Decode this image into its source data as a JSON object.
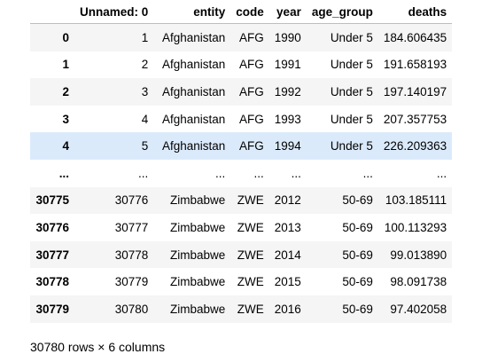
{
  "table": {
    "columns": [
      "",
      "Unnamed: 0",
      "entity",
      "code",
      "year",
      "age_group",
      "deaths"
    ],
    "rows": [
      {
        "index": "0",
        "cells": [
          "1",
          "Afghanistan",
          "AFG",
          "1990",
          "Under 5",
          "184.606435"
        ]
      },
      {
        "index": "1",
        "cells": [
          "2",
          "Afghanistan",
          "AFG",
          "1991",
          "Under 5",
          "191.658193"
        ]
      },
      {
        "index": "2",
        "cells": [
          "3",
          "Afghanistan",
          "AFG",
          "1992",
          "Under 5",
          "197.140197"
        ]
      },
      {
        "index": "3",
        "cells": [
          "4",
          "Afghanistan",
          "AFG",
          "1993",
          "Under 5",
          "207.357753"
        ]
      },
      {
        "index": "4",
        "cells": [
          "5",
          "Afghanistan",
          "AFG",
          "1994",
          "Under 5",
          "226.209363"
        ]
      },
      {
        "index": "...",
        "cells": [
          "...",
          "...",
          "...",
          "...",
          "...",
          "..."
        ]
      },
      {
        "index": "30775",
        "cells": [
          "30776",
          "Zimbabwe",
          "ZWE",
          "2012",
          "50-69",
          "103.185111"
        ]
      },
      {
        "index": "30776",
        "cells": [
          "30777",
          "Zimbabwe",
          "ZWE",
          "2013",
          "50-69",
          "100.113293"
        ]
      },
      {
        "index": "30777",
        "cells": [
          "30778",
          "Zimbabwe",
          "ZWE",
          "2014",
          "50-69",
          "99.013890"
        ]
      },
      {
        "index": "30778",
        "cells": [
          "30779",
          "Zimbabwe",
          "ZWE",
          "2015",
          "50-69",
          "98.091738"
        ]
      },
      {
        "index": "30779",
        "cells": [
          "30780",
          "Zimbabwe",
          "ZWE",
          "2016",
          "50-69",
          "97.402058"
        ]
      }
    ],
    "highlighted_row": "4",
    "colors": {
      "stripe": "#f5f5f5",
      "hover": "#dbeafb",
      "header_rule": "#bdbdbd"
    }
  },
  "shape_note": "30780 rows × 6 columns"
}
